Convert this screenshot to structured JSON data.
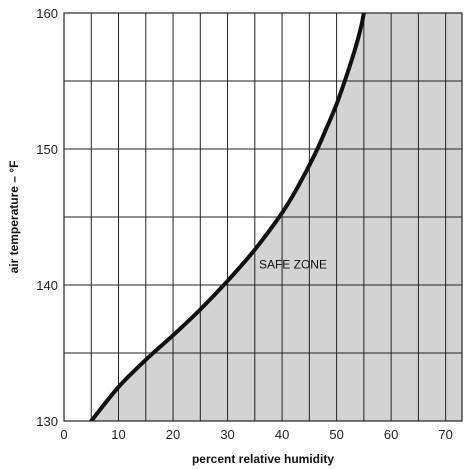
{
  "chart_data": {
    "type": "area",
    "xlabel": "percent relative humidity",
    "ylabel": "air temperature – °F",
    "xlim": [
      0,
      73
    ],
    "ylim": [
      130,
      160
    ],
    "x_ticks": [
      "0",
      "10",
      "20",
      "30",
      "40",
      "50",
      "60",
      "70"
    ],
    "y_ticks": [
      "130",
      "140",
      "150",
      "160"
    ],
    "grid": true,
    "series": [
      {
        "x": [
          5,
          10,
          15,
          20,
          25,
          30,
          35,
          40,
          43,
          46,
          48,
          50,
          52,
          53.5,
          54.5,
          55
        ],
        "y": [
          130,
          132.5,
          134.5,
          136.3,
          138.2,
          140.3,
          142.6,
          145.3,
          147.3,
          149.6,
          151.4,
          153.3,
          155.6,
          157.5,
          159,
          160
        ]
      }
    ],
    "annotations": [
      {
        "text": "SAFE ZONE",
        "x": 42,
        "y": 141.5
      }
    ],
    "colors": {
      "safe_zone_fill": "#d3d3d3",
      "curve": "#111111",
      "grid": "#222222"
    }
  }
}
